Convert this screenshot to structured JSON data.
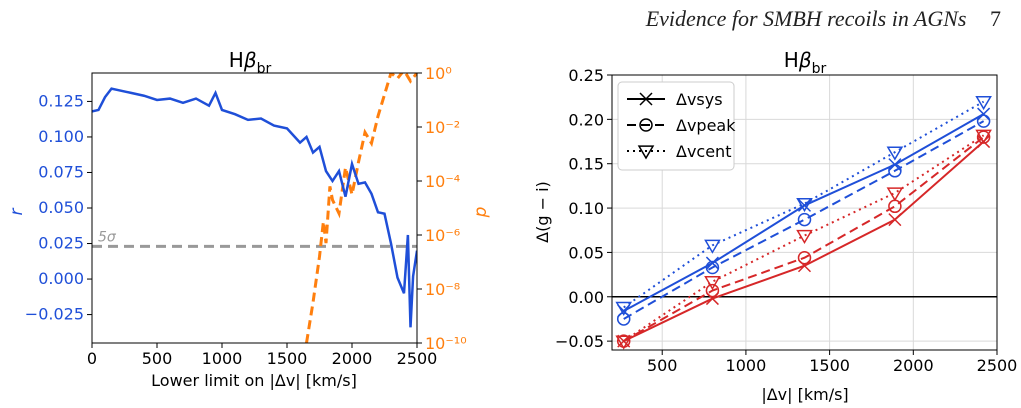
{
  "header": {
    "running_title": "Evidence for SMBH recoils in AGNs",
    "page_number": "7"
  },
  "colors": {
    "blue": "#1f4fd8",
    "orange": "#ff7f0e",
    "red": "#d62728",
    "grey": "#999999"
  },
  "chart_data": [
    {
      "type": "line",
      "title": "Hβbr",
      "xlabel": "Lower limit on |Δv| [km/s]",
      "ylabel_left": "r",
      "ylabel_right": "p",
      "xlim": [
        0,
        2500
      ],
      "ylim_left": [
        -0.045,
        0.145
      ],
      "ylim_right_log10": [
        -10,
        0
      ],
      "xticks": [
        "0",
        "500",
        "1000",
        "1500",
        "2000",
        "2500"
      ],
      "yticks_left": [
        "0.125",
        "0.100",
        "0.075",
        "0.050",
        "0.025",
        "0.000",
        "−0.025"
      ],
      "yticks_right": [
        "10⁰",
        "10⁻²",
        "10⁻⁴",
        "10⁻⁶",
        "10⁻⁸",
        "10⁻¹⁰"
      ],
      "threshold": {
        "label": "5σ",
        "r": 0.023
      },
      "series": [
        {
          "axis": "left",
          "style": "solid",
          "x": [
            0,
            50,
            100,
            150,
            200,
            300,
            400,
            500,
            600,
            700,
            800,
            900,
            950,
            1000,
            1100,
            1200,
            1300,
            1400,
            1500,
            1600,
            1650,
            1700,
            1750,
            1800,
            1850,
            1900,
            1950,
            2000,
            2050,
            2100,
            2150,
            2200,
            2250,
            2300,
            2350,
            2400,
            2430,
            2450,
            2470,
            2500
          ],
          "y": [
            0.118,
            0.119,
            0.128,
            0.134,
            0.133,
            0.131,
            0.129,
            0.126,
            0.127,
            0.124,
            0.127,
            0.122,
            0.131,
            0.119,
            0.116,
            0.112,
            0.113,
            0.108,
            0.106,
            0.096,
            0.1,
            0.089,
            0.093,
            0.076,
            0.069,
            0.076,
            0.058,
            0.081,
            0.067,
            0.068,
            0.06,
            0.047,
            0.046,
            0.025,
            0.001,
            -0.01,
            0.031,
            -0.034,
            0.002,
            0.02
          ]
        },
        {
          "axis": "right",
          "style": "dashed",
          "x": [
            1650,
            1700,
            1750,
            1780,
            1800,
            1830,
            1850,
            1900,
            1950,
            2000,
            2050,
            2100,
            2150,
            2200,
            2250,
            2300,
            2350,
            2400,
            2450,
            2500
          ],
          "log10p": [
            -10,
            -8.5,
            -6.8,
            -5.5,
            -6.3,
            -4.2,
            -4.7,
            -5.2,
            -3.5,
            -4.5,
            -3.3,
            -2.2,
            -2.6,
            -1.6,
            -0.8,
            0,
            -0.2,
            0.1,
            -0.3,
            0
          ]
        }
      ]
    },
    {
      "type": "line",
      "title": "Hβbr",
      "xlabel": "|Δv| [km/s]",
      "ylabel": "Δ(g − i)",
      "xlim": [
        200,
        2500
      ],
      "ylim": [
        -0.06,
        0.25
      ],
      "xticks": [
        "500",
        "1000",
        "1500",
        "2000",
        "2500"
      ],
      "yticks": [
        "0.25",
        "0.20",
        "0.15",
        "0.10",
        "0.05",
        "0.00",
        "−0.05"
      ],
      "grid": true,
      "legend": "top-left",
      "legend_entries": [
        "Δvsys",
        "Δvpeak",
        "Δvcent"
      ],
      "x": [
        270,
        800,
        1350,
        1890,
        2420
      ],
      "series": [
        {
          "group": "blue",
          "style": "solid",
          "marker": "x",
          "values": [
            -0.016,
            0.038,
            0.103,
            0.149,
            0.206
          ]
        },
        {
          "group": "blue",
          "style": "dashed",
          "marker": "circle",
          "values": [
            -0.025,
            0.033,
            0.087,
            0.142,
            0.198
          ]
        },
        {
          "group": "blue",
          "style": "dotted",
          "marker": "triangle",
          "values": [
            -0.012,
            0.058,
            0.105,
            0.163,
            0.22
          ]
        },
        {
          "group": "red",
          "style": "solid",
          "marker": "x",
          "values": [
            -0.05,
            -0.002,
            0.035,
            0.087,
            0.175
          ]
        },
        {
          "group": "red",
          "style": "dashed",
          "marker": "circle",
          "values": [
            -0.05,
            0.007,
            0.044,
            0.102,
            0.18
          ]
        },
        {
          "group": "red",
          "style": "dotted",
          "marker": "triangle",
          "values": [
            -0.05,
            0.017,
            0.069,
            0.117,
            0.182
          ]
        }
      ]
    }
  ]
}
